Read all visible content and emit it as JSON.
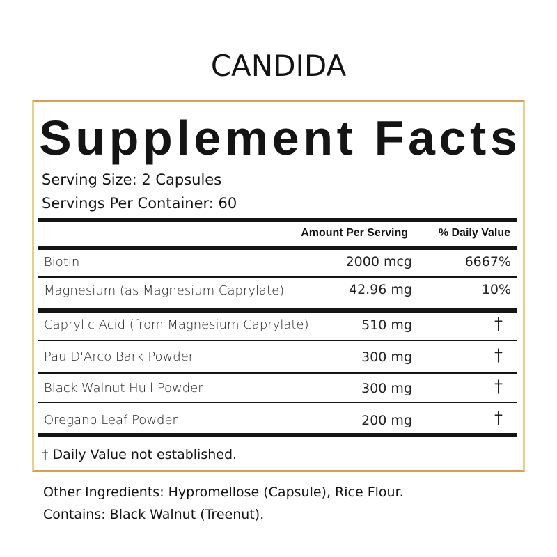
{
  "product_name": "CANDIDA",
  "heading": "Supplement Facts",
  "serving_size": "Serving Size: 2 Capsules",
  "servings_per_container": "Servings Per Container: 60",
  "columns": {
    "amount": "Amount Per Serving",
    "daily_value": "% Daily Value"
  },
  "rows": [
    {
      "name": "Biotin",
      "amount": "2000 mcg",
      "dv": "6667%"
    },
    {
      "name": "Magnesium (as Magnesium Caprylate)",
      "amount": "42.96 mg",
      "dv": "10%"
    },
    {
      "name": "Caprylic Acid (from Magnesium Caprylate)",
      "amount": "510 mg",
      "dv": "†"
    },
    {
      "name": "Pau D'Arco Bark Powder",
      "amount": "300 mg",
      "dv": "†"
    },
    {
      "name": "Black Walnut Hull Powder",
      "amount": "300 mg",
      "dv": "†"
    },
    {
      "name": "Oregano Leaf Powder",
      "amount": "200 mg",
      "dv": "†"
    }
  ],
  "footnote": "† Daily Value not established.",
  "other_ingredients": "Other Ingredients: Hypromellose (Capsule), Rice Flour.",
  "contains": "Contains: Black Walnut (Treenut).",
  "colors": {
    "border": "#e9cf86",
    "border_accent": "#d9a050",
    "text": "#141414"
  }
}
